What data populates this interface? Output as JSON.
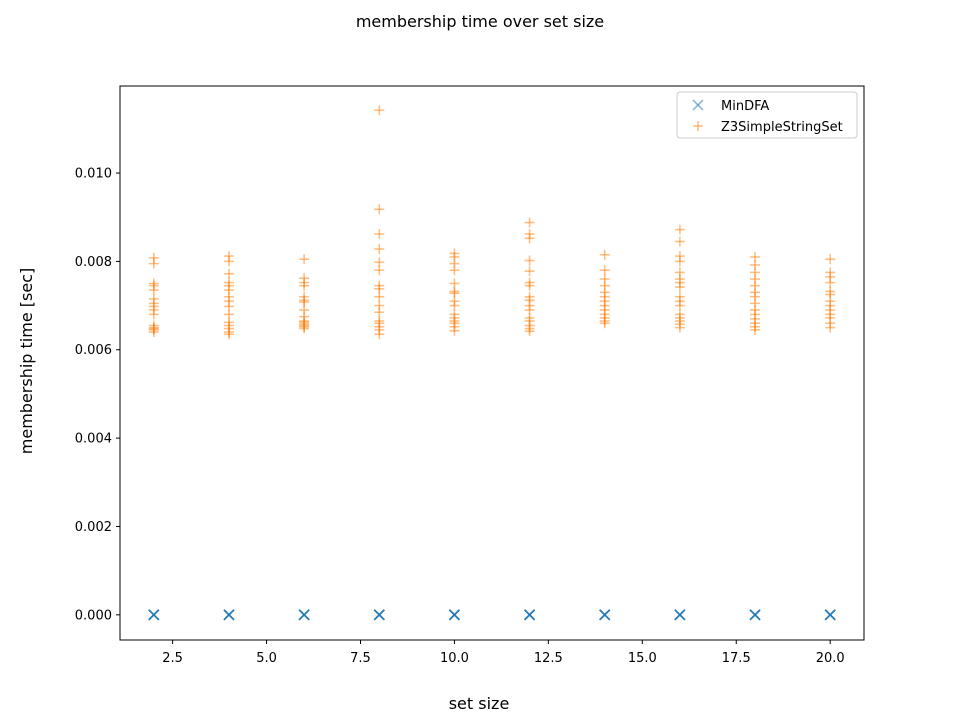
{
  "chart_data": {
    "type": "scatter",
    "title": "membership time over set size",
    "xlabel": "set size",
    "ylabel": "membership time [sec]",
    "xlim": [
      1.1,
      20.9
    ],
    "ylim": [
      -0.00057,
      0.01197
    ],
    "xticks": [
      2.5,
      5.0,
      7.5,
      10.0,
      12.5,
      15.0,
      17.5,
      20.0
    ],
    "xtick_labels": [
      "2.5",
      "5.0",
      "7.5",
      "10.0",
      "12.5",
      "15.0",
      "17.5",
      "20.0"
    ],
    "yticks": [
      0.0,
      0.002,
      0.004,
      0.006,
      0.008,
      0.01
    ],
    "ytick_labels": [
      "0.000",
      "0.002",
      "0.004",
      "0.006",
      "0.008",
      "0.010"
    ],
    "grid": false,
    "legend_position": "top-right",
    "series": [
      {
        "name": "MinDFA",
        "marker": "x",
        "color": "#1f77b4",
        "alpha": 0.5,
        "points": [
          [
            2,
            0.0
          ],
          [
            2,
            0.0
          ],
          [
            2,
            0.0
          ],
          [
            2,
            0.0
          ],
          [
            2,
            0.0
          ],
          [
            4,
            0.0
          ],
          [
            4,
            0.0
          ],
          [
            4,
            0.0
          ],
          [
            4,
            0.0
          ],
          [
            4,
            0.0
          ],
          [
            6,
            0.0
          ],
          [
            6,
            0.0
          ],
          [
            6,
            0.0
          ],
          [
            6,
            0.0
          ],
          [
            6,
            0.0
          ],
          [
            8,
            0.0
          ],
          [
            8,
            0.0
          ],
          [
            8,
            0.0
          ],
          [
            8,
            0.0
          ],
          [
            8,
            0.0
          ],
          [
            10,
            0.0
          ],
          [
            10,
            0.0
          ],
          [
            10,
            0.0
          ],
          [
            10,
            0.0
          ],
          [
            10,
            0.0
          ],
          [
            12,
            0.0
          ],
          [
            12,
            0.0
          ],
          [
            12,
            0.0
          ],
          [
            12,
            0.0
          ],
          [
            12,
            0.0
          ],
          [
            14,
            0.0
          ],
          [
            14,
            0.0
          ],
          [
            14,
            0.0
          ],
          [
            14,
            0.0
          ],
          [
            14,
            0.0
          ],
          [
            16,
            0.0
          ],
          [
            16,
            0.0
          ],
          [
            16,
            0.0
          ],
          [
            16,
            0.0
          ],
          [
            16,
            0.0
          ],
          [
            18,
            0.0
          ],
          [
            18,
            0.0
          ],
          [
            18,
            0.0
          ],
          [
            18,
            0.0
          ],
          [
            18,
            0.0
          ],
          [
            20,
            0.0
          ],
          [
            20,
            0.0
          ],
          [
            20,
            0.0
          ],
          [
            20,
            0.0
          ],
          [
            20,
            0.0
          ]
        ]
      },
      {
        "name": "Z3SimpleStringSet",
        "marker": "+",
        "color": "#ff7f0e",
        "alpha": 0.5,
        "points": [
          [
            2,
            0.00808
          ],
          [
            2,
            0.00795
          ],
          [
            2,
            0.0075
          ],
          [
            2,
            0.00745
          ],
          [
            2,
            0.00735
          ],
          [
            2,
            0.00715
          ],
          [
            2,
            0.00705
          ],
          [
            2,
            0.00698
          ],
          [
            2,
            0.0069
          ],
          [
            2,
            0.0068
          ],
          [
            2,
            0.00655
          ],
          [
            2,
            0.0065
          ],
          [
            2,
            0.00645
          ],
          [
            2,
            0.0064
          ],
          [
            2,
            0.00648
          ],
          [
            4,
            0.00812
          ],
          [
            4,
            0.008
          ],
          [
            4,
            0.00772
          ],
          [
            4,
            0.00752
          ],
          [
            4,
            0.00745
          ],
          [
            4,
            0.00735
          ],
          [
            4,
            0.0072
          ],
          [
            4,
            0.0071
          ],
          [
            4,
            0.00698
          ],
          [
            4,
            0.0068
          ],
          [
            4,
            0.00662
          ],
          [
            4,
            0.00655
          ],
          [
            4,
            0.00648
          ],
          [
            4,
            0.0064
          ],
          [
            4,
            0.00635
          ],
          [
            6,
            0.00805
          ],
          [
            6,
            0.00762
          ],
          [
            6,
            0.00752
          ],
          [
            6,
            0.00745
          ],
          [
            6,
            0.0072
          ],
          [
            6,
            0.00712
          ],
          [
            6,
            0.00708
          ],
          [
            6,
            0.0069
          ],
          [
            6,
            0.00675
          ],
          [
            6,
            0.00662
          ],
          [
            6,
            0.00658
          ],
          [
            6,
            0.00652
          ],
          [
            6,
            0.00648
          ],
          [
            6,
            0.00655
          ],
          [
            6,
            0.00665
          ],
          [
            8,
            0.01142
          ],
          [
            8,
            0.00918
          ],
          [
            8,
            0.00862
          ],
          [
            8,
            0.00828
          ],
          [
            8,
            0.00798
          ],
          [
            8,
            0.0078
          ],
          [
            8,
            0.00745
          ],
          [
            8,
            0.00738
          ],
          [
            8,
            0.0072
          ],
          [
            8,
            0.007
          ],
          [
            8,
            0.00685
          ],
          [
            8,
            0.00665
          ],
          [
            8,
            0.0066
          ],
          [
            8,
            0.00652
          ],
          [
            8,
            0.00645
          ],
          [
            8,
            0.00635
          ],
          [
            10,
            0.00818
          ],
          [
            10,
            0.0081
          ],
          [
            10,
            0.00795
          ],
          [
            10,
            0.0078
          ],
          [
            10,
            0.0075
          ],
          [
            10,
            0.00732
          ],
          [
            10,
            0.00728
          ],
          [
            10,
            0.0071
          ],
          [
            10,
            0.007
          ],
          [
            10,
            0.0068
          ],
          [
            10,
            0.00672
          ],
          [
            10,
            0.00665
          ],
          [
            10,
            0.0066
          ],
          [
            10,
            0.00652
          ],
          [
            10,
            0.00643
          ],
          [
            12,
            0.00888
          ],
          [
            12,
            0.00862
          ],
          [
            12,
            0.00852
          ],
          [
            12,
            0.00802
          ],
          [
            12,
            0.00778
          ],
          [
            12,
            0.00752
          ],
          [
            12,
            0.00745
          ],
          [
            12,
            0.0072
          ],
          [
            12,
            0.00712
          ],
          [
            12,
            0.007
          ],
          [
            12,
            0.0069
          ],
          [
            12,
            0.00672
          ],
          [
            12,
            0.00665
          ],
          [
            12,
            0.00655
          ],
          [
            12,
            0.00648
          ],
          [
            12,
            0.00642
          ],
          [
            14,
            0.00815
          ],
          [
            14,
            0.0078
          ],
          [
            14,
            0.0076
          ],
          [
            14,
            0.00745
          ],
          [
            14,
            0.0073
          ],
          [
            14,
            0.0072
          ],
          [
            14,
            0.0071
          ],
          [
            14,
            0.007
          ],
          [
            14,
            0.0069
          ],
          [
            14,
            0.0068
          ],
          [
            14,
            0.00672
          ],
          [
            14,
            0.00665
          ],
          [
            14,
            0.0066
          ],
          [
            16,
            0.00872
          ],
          [
            16,
            0.00845
          ],
          [
            16,
            0.00812
          ],
          [
            16,
            0.008
          ],
          [
            16,
            0.00775
          ],
          [
            16,
            0.0076
          ],
          [
            16,
            0.00752
          ],
          [
            16,
            0.00742
          ],
          [
            16,
            0.0072
          ],
          [
            16,
            0.0071
          ],
          [
            16,
            0.007
          ],
          [
            16,
            0.0068
          ],
          [
            16,
            0.00672
          ],
          [
            16,
            0.00665
          ],
          [
            16,
            0.00658
          ],
          [
            16,
            0.0065
          ],
          [
            18,
            0.0081
          ],
          [
            18,
            0.00792
          ],
          [
            18,
            0.00775
          ],
          [
            18,
            0.0076
          ],
          [
            18,
            0.00745
          ],
          [
            18,
            0.0073
          ],
          [
            18,
            0.0072
          ],
          [
            18,
            0.00705
          ],
          [
            18,
            0.0069
          ],
          [
            18,
            0.0068
          ],
          [
            18,
            0.0067
          ],
          [
            18,
            0.0066
          ],
          [
            18,
            0.00652
          ],
          [
            18,
            0.00645
          ],
          [
            20,
            0.00805
          ],
          [
            20,
            0.00775
          ],
          [
            20,
            0.00765
          ],
          [
            20,
            0.00752
          ],
          [
            20,
            0.00732
          ],
          [
            20,
            0.00725
          ],
          [
            20,
            0.0071
          ],
          [
            20,
            0.007
          ],
          [
            20,
            0.0069
          ],
          [
            20,
            0.0068
          ],
          [
            20,
            0.00672
          ],
          [
            20,
            0.0066
          ],
          [
            20,
            0.0065
          ]
        ]
      }
    ]
  }
}
